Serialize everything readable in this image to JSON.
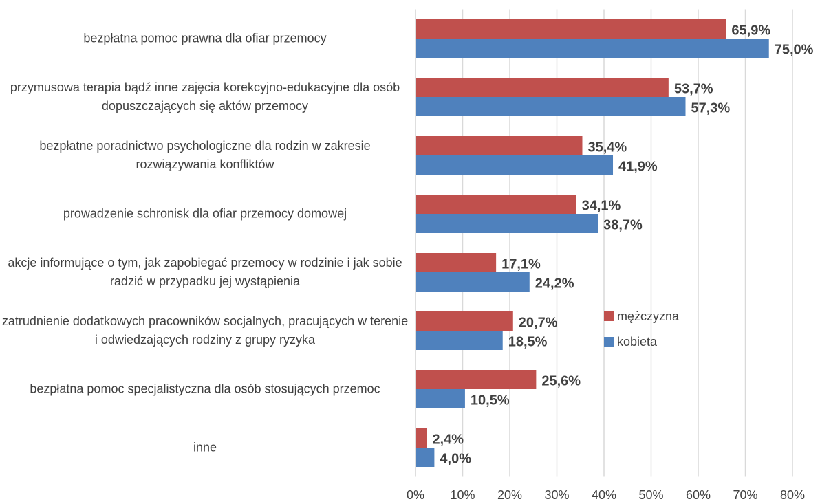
{
  "chart_data": {
    "type": "bar",
    "orientation": "horizontal",
    "categories": [
      "bezpłatna pomoc prawna dla ofiar przemocy",
      "przymusowa terapia bądź inne zajęcia korekcyjno-edukacyjne dla osób dopuszczających się aktów przemocy",
      "bezpłatne poradnictwo psychologiczne dla rodzin w zakresie rozwiązywania konfliktów",
      "prowadzenie schronisk dla ofiar przemocy domowej",
      "akcje informujące o tym, jak zapobiegać przemocy w rodzinie i jak sobie radzić w przypadku jej wystąpienia",
      "zatrudnienie dodatkowych pracowników socjalnych, pracujących w terenie i odwiedzających rodziny z grupy ryzyka",
      "bezpłatna pomoc specjalistyczna dla osób stosujących przemoc",
      "inne"
    ],
    "series": [
      {
        "name": "mężczyzna",
        "color": "#c0504d",
        "values": [
          65.9,
          53.7,
          35.4,
          34.1,
          17.1,
          20.7,
          25.6,
          2.4
        ],
        "value_labels": [
          "65,9%",
          "53,7%",
          "35,4%",
          "34,1%",
          "17,1%",
          "20,7%",
          "25,6%",
          "2,4%"
        ]
      },
      {
        "name": "kobieta",
        "color": "#4f81bd",
        "values": [
          75.0,
          57.3,
          41.9,
          38.7,
          24.2,
          18.5,
          10.5,
          4.0
        ],
        "value_labels": [
          "75,0%",
          "57,3%",
          "41,9%",
          "38,7%",
          "24,2%",
          "18,5%",
          "10,5%",
          "4,0%"
        ]
      }
    ],
    "xlim": [
      0,
      80
    ],
    "xticks": [
      {
        "value": 0,
        "label": "0%"
      },
      {
        "value": 10,
        "label": "10%"
      },
      {
        "value": 20,
        "label": "20%"
      },
      {
        "value": 30,
        "label": "30%"
      },
      {
        "value": 40,
        "label": "40%"
      },
      {
        "value": 50,
        "label": "50%"
      },
      {
        "value": 60,
        "label": "60%"
      },
      {
        "value": 70,
        "label": "70%"
      },
      {
        "value": 80,
        "label": "80%"
      }
    ],
    "grid": true,
    "legend": "right"
  }
}
